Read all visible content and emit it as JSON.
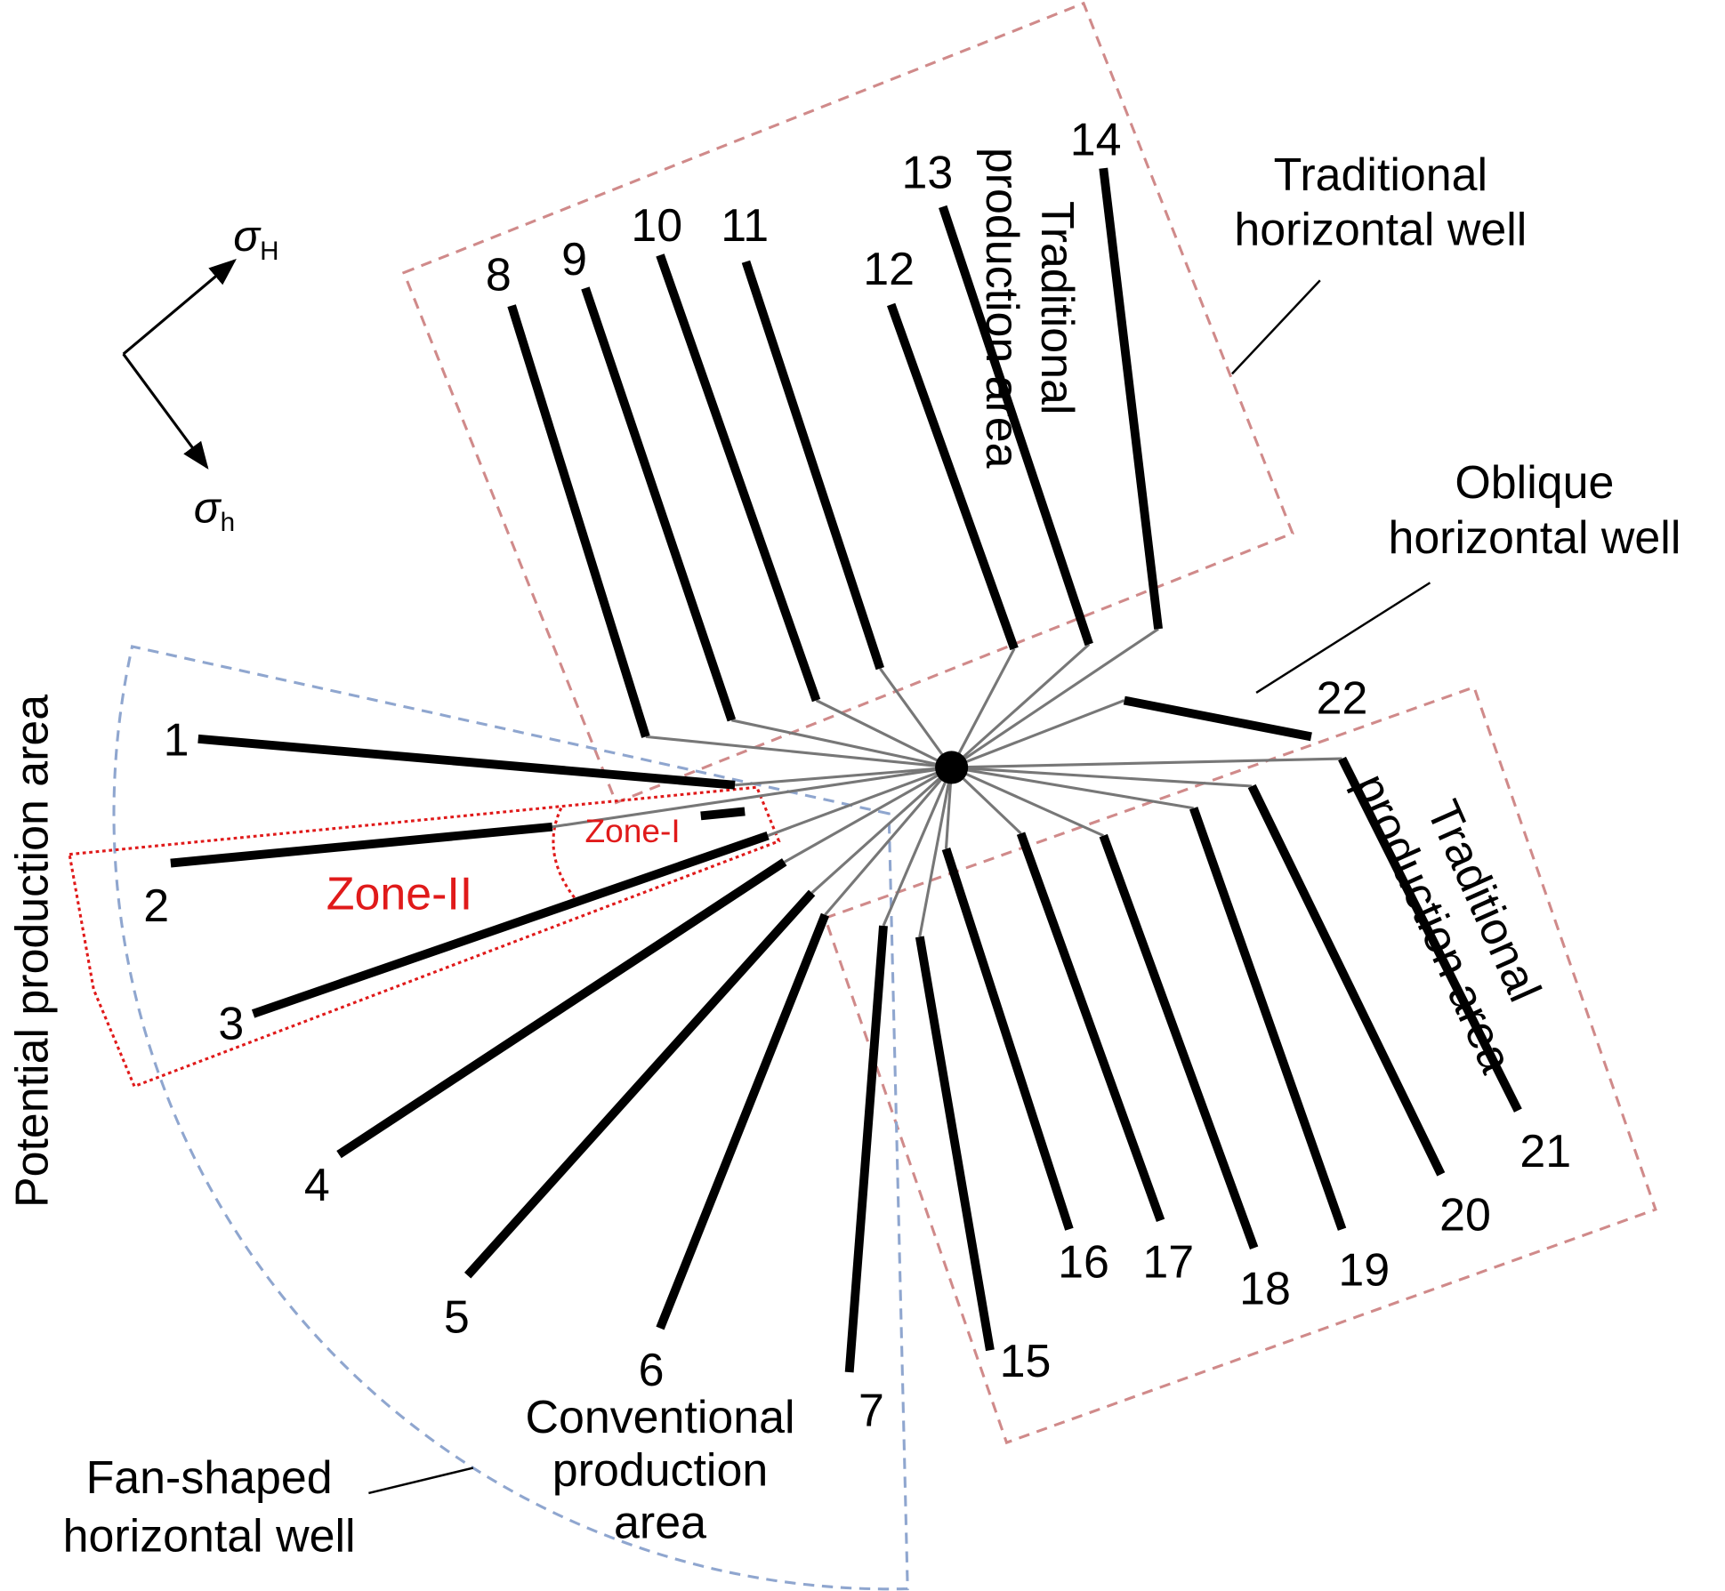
{
  "wells": [
    "1",
    "2",
    "3",
    "4",
    "5",
    "6",
    "7",
    "8",
    "9",
    "10",
    "11",
    "12",
    "13",
    "14",
    "15",
    "16",
    "17",
    "18",
    "19",
    "20",
    "21",
    "22"
  ],
  "stress": {
    "max": {
      "symbol": "σ",
      "subscript": "H"
    },
    "min": {
      "symbol": "σ",
      "subscript": "h"
    }
  },
  "annotations": {
    "traditional_well": [
      "Traditional",
      "horizontal well"
    ],
    "oblique_well": [
      "Oblique",
      "horizontal well"
    ],
    "fan_well": [
      "Fan-shaped",
      "horizontal well"
    ],
    "traditional_area_top": [
      "Traditional",
      "production area"
    ],
    "traditional_area_right": [
      "Traditional",
      "production area"
    ],
    "potential_area": "Potential production area",
    "conventional_area": [
      "Conventional",
      "production",
      "area"
    ],
    "zone_1": "Zone-I",
    "zone_2": "Zone-II"
  }
}
